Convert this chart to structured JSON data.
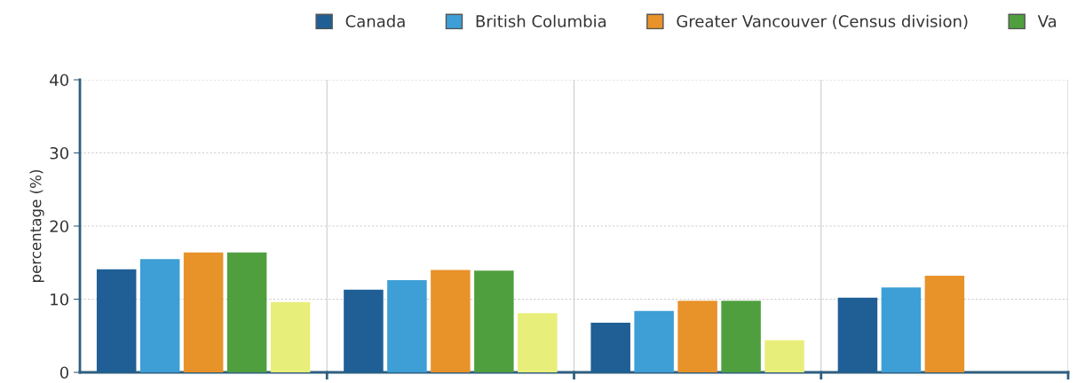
{
  "chart_data": {
    "type": "bar",
    "ylabel": "percentage (%)",
    "categories": [
      null,
      null,
      null,
      null
    ],
    "series": [
      {
        "name": "Canada",
        "color": "#1f5f96",
        "values": [
          14.1,
          11.3,
          6.8,
          10.2
        ]
      },
      {
        "name": "British Columbia",
        "color": "#3d9fd6",
        "values": [
          15.5,
          12.6,
          8.4,
          11.6
        ]
      },
      {
        "name": "Greater Vancouver (Census division)",
        "color": "#e8922a",
        "values": [
          16.4,
          14.0,
          9.8,
          13.2
        ]
      },
      {
        "name": "Va",
        "color": "#4f9f3f",
        "values": [
          16.4,
          13.9,
          9.8,
          null
        ]
      },
      {
        "color": "#e8ee7a",
        "values": [
          9.6,
          8.1,
          4.4,
          null
        ]
      }
    ],
    "ylim": [
      0,
      40
    ],
    "yticks": [
      0,
      10,
      20,
      30,
      40
    ],
    "grid": true,
    "legend": "top right"
  }
}
